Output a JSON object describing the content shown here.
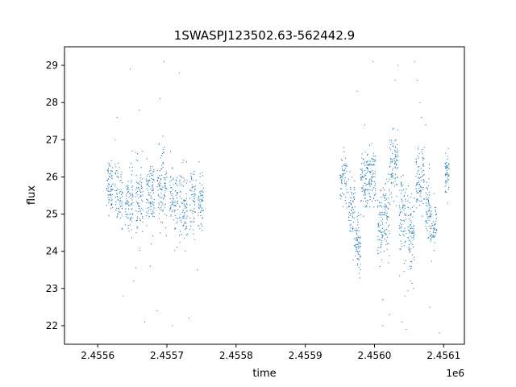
{
  "chart_data": {
    "type": "scatter",
    "title": "1SWASPJ123502.63-562442.9",
    "xlabel": "time",
    "ylabel": "flux",
    "x_offset_label": "1e6",
    "xlim": [
      2.455552,
      2.45613
    ],
    "ylim": [
      21.5,
      29.5
    ],
    "xticks": [
      2.4556,
      2.4557,
      2.4558,
      2.4559,
      2.456,
      2.4561
    ],
    "xtick_labels": [
      "2.4556",
      "2.4557",
      "2.4558",
      "2.4559",
      "2.4560",
      "2.4561"
    ],
    "yticks": [
      22,
      23,
      24,
      25,
      26,
      27,
      28,
      29
    ],
    "ytick_labels": [
      "22",
      "23",
      "24",
      "25",
      "26",
      "27",
      "28",
      "29"
    ],
    "grid": false,
    "marker_color": "#1f77b4",
    "series": [
      {
        "segments": [
          {
            "x0": 2.455613,
            "x1": 2.455622,
            "y": 25.8,
            "spread": 0.35,
            "n": 70
          },
          {
            "x0": 2.455625,
            "x1": 2.455636,
            "y": 25.5,
            "spread": 0.4,
            "n": 70
          },
          {
            "x0": 2.45564,
            "x1": 2.455651,
            "y": 25.4,
            "spread": 0.45,
            "n": 80
          },
          {
            "x0": 2.455655,
            "x1": 2.455666,
            "y": 25.3,
            "spread": 0.5,
            "n": 80
          },
          {
            "x0": 2.45567,
            "x1": 2.455682,
            "y": 25.5,
            "spread": 0.45,
            "n": 90
          },
          {
            "x0": 2.455686,
            "x1": 2.4557,
            "y": 25.7,
            "spread": 0.5,
            "n": 100
          },
          {
            "x0": 2.455704,
            "x1": 2.455716,
            "y": 25.3,
            "spread": 0.45,
            "n": 80
          },
          {
            "x0": 2.455718,
            "x1": 2.45573,
            "y": 25.2,
            "spread": 0.5,
            "n": 80
          },
          {
            "x0": 2.455733,
            "x1": 2.455742,
            "y": 25.4,
            "spread": 0.45,
            "n": 60
          },
          {
            "x0": 2.455745,
            "x1": 2.455753,
            "y": 25.3,
            "spread": 0.35,
            "n": 60
          },
          {
            "x0": 2.45595,
            "x1": 2.45596,
            "y": 25.9,
            "spread": 0.35,
            "n": 60
          },
          {
            "x0": 2.455962,
            "x1": 2.455972,
            "y": 25.2,
            "spread": 0.5,
            "n": 70
          },
          {
            "x0": 2.455972,
            "x1": 2.45598,
            "y": 24.2,
            "spread": 0.35,
            "n": 70
          },
          {
            "x0": 2.45598,
            "x1": 2.455992,
            "y": 25.8,
            "spread": 0.45,
            "n": 90
          },
          {
            "x0": 2.455992,
            "x1": 2.456002,
            "y": 26.0,
            "spread": 0.4,
            "n": 80
          },
          {
            "x0": 2.456004,
            "x1": 2.456012,
            "y": 24.5,
            "spread": 0.5,
            "n": 60
          },
          {
            "x0": 2.456012,
            "x1": 2.456022,
            "y": 25.0,
            "spread": 0.5,
            "n": 70
          },
          {
            "x0": 2.456022,
            "x1": 2.456034,
            "y": 26.3,
            "spread": 0.45,
            "n": 90
          },
          {
            "x0": 2.456036,
            "x1": 2.456046,
            "y": 24.9,
            "spread": 0.55,
            "n": 80
          },
          {
            "x0": 2.456048,
            "x1": 2.456058,
            "y": 24.6,
            "spread": 0.5,
            "n": 80
          },
          {
            "x0": 2.45606,
            "x1": 2.456072,
            "y": 25.9,
            "spread": 0.45,
            "n": 90
          },
          {
            "x0": 2.456074,
            "x1": 2.45608,
            "y": 25.3,
            "spread": 0.4,
            "n": 50
          },
          {
            "x0": 2.45608,
            "x1": 2.45609,
            "y": 24.6,
            "spread": 0.35,
            "n": 60
          },
          {
            "x0": 2.456102,
            "x1": 2.456108,
            "y": 26.0,
            "spread": 0.35,
            "n": 50
          }
        ],
        "outliers": [
          [
            2.455628,
            27.6
          ],
          [
            2.455637,
            22.8
          ],
          [
            2.455647,
            28.9
          ],
          [
            2.455652,
            23.2
          ],
          [
            2.455668,
            22.1
          ],
          [
            2.455686,
            22.4
          ],
          [
            2.455694,
            27.1
          ],
          [
            2.455696,
            29.1
          ],
          [
            2.455708,
            22.0
          ],
          [
            2.455718,
            28.8
          ],
          [
            2.455732,
            22.2
          ],
          [
            2.455744,
            23.5
          ],
          [
            2.455625,
            27.0
          ],
          [
            2.45569,
            28.1
          ],
          [
            2.45566,
            27.8
          ],
          [
            2.455676,
            23.6
          ],
          [
            2.455975,
            28.3
          ],
          [
            2.455986,
            27.4
          ],
          [
            2.455998,
            29.1
          ],
          [
            2.456012,
            22.7
          ],
          [
            2.456012,
            22.0
          ],
          [
            2.456022,
            22.3
          ],
          [
            2.45603,
            28.6
          ],
          [
            2.456034,
            29.0
          ],
          [
            2.45604,
            22.1
          ],
          [
            2.456046,
            21.9
          ],
          [
            2.456058,
            29.1
          ],
          [
            2.456062,
            28.6
          ],
          [
            2.456066,
            28.0
          ],
          [
            2.456074,
            27.4
          ],
          [
            2.45608,
            22.5
          ],
          [
            2.456094,
            21.8
          ],
          [
            2.456052,
            23.2
          ],
          [
            2.456044,
            22.8
          ],
          [
            2.456068,
            27.6
          ],
          [
            2.456056,
            23.0
          ]
        ]
      }
    ]
  }
}
